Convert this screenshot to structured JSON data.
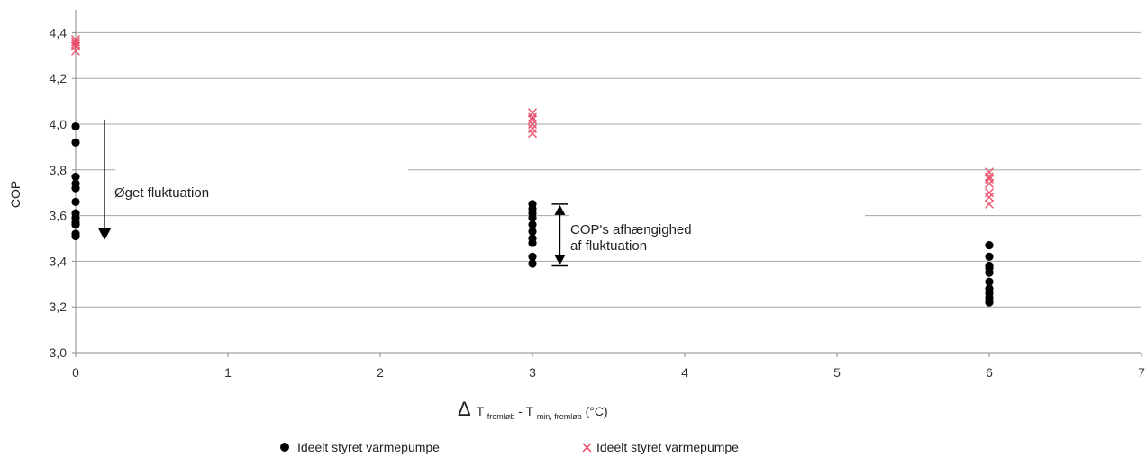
{
  "chart_data": {
    "type": "scatter",
    "ylabel": "COP",
    "xlabel": {
      "delta": "Δ",
      "t1": "T",
      "sub1": "fremløb",
      "sep": "- ",
      "t2": "T",
      "sub2": "min, fremløb",
      "unit": " (°C)"
    },
    "xlim": [
      0,
      7
    ],
    "ylim": [
      3.0,
      4.5
    ],
    "x_ticks": [
      "0",
      "1",
      "2",
      "3",
      "4",
      "5",
      "6",
      "7"
    ],
    "y_ticks": [
      "3,0",
      "3,2",
      "3,4",
      "3,6",
      "3,8",
      "4,0",
      "4,2",
      "4,4"
    ],
    "grid": "horizontal",
    "legend_position": "bottom",
    "series": [
      {
        "name": "Ideelt styret varmepumpe",
        "marker": "circle",
        "color": "#000000",
        "points": [
          [
            0,
            3.99
          ],
          [
            0,
            3.92
          ],
          [
            0,
            3.77
          ],
          [
            0,
            3.74
          ],
          [
            0,
            3.72
          ],
          [
            0,
            3.66
          ],
          [
            0,
            3.61
          ],
          [
            0,
            3.59
          ],
          [
            0,
            3.57
          ],
          [
            0,
            3.56
          ],
          [
            0,
            3.52
          ],
          [
            0,
            3.51
          ],
          [
            3,
            3.65
          ],
          [
            3,
            3.63
          ],
          [
            3,
            3.61
          ],
          [
            3,
            3.59
          ],
          [
            3,
            3.56
          ],
          [
            3,
            3.53
          ],
          [
            3,
            3.5
          ],
          [
            3,
            3.48
          ],
          [
            3,
            3.42
          ],
          [
            3,
            3.39
          ],
          [
            6,
            3.47
          ],
          [
            6,
            3.42
          ],
          [
            6,
            3.38
          ],
          [
            6,
            3.37
          ],
          [
            6,
            3.35
          ],
          [
            6,
            3.31
          ],
          [
            6,
            3.28
          ],
          [
            6,
            3.26
          ],
          [
            6,
            3.24
          ],
          [
            6,
            3.22
          ]
        ]
      },
      {
        "name": "Ideelt styret varmepumpe",
        "marker": "cross",
        "color": "#e8425e",
        "points": [
          [
            0,
            4.37
          ],
          [
            0,
            4.36
          ],
          [
            0,
            4.35
          ],
          [
            0,
            4.34
          ],
          [
            0,
            4.32
          ],
          [
            3,
            4.05
          ],
          [
            3,
            4.03
          ],
          [
            3,
            4.02
          ],
          [
            3,
            4.0
          ],
          [
            3,
            3.98
          ],
          [
            3,
            3.96
          ],
          [
            6,
            3.79
          ],
          [
            6,
            3.77
          ],
          [
            6,
            3.76
          ],
          [
            6,
            3.74
          ],
          [
            6,
            3.7
          ],
          [
            6,
            3.68
          ],
          [
            6,
            3.65
          ]
        ]
      }
    ],
    "annotations": [
      {
        "text": "Øget fluktuation",
        "arrow_from_y": 4.02,
        "arrow_to_y": 3.5,
        "x": 0.19
      },
      {
        "lines": [
          "COP's afhængighed",
          "af fluktuation"
        ],
        "range": [
          3.65,
          3.38
        ],
        "x": 3.18
      }
    ]
  }
}
